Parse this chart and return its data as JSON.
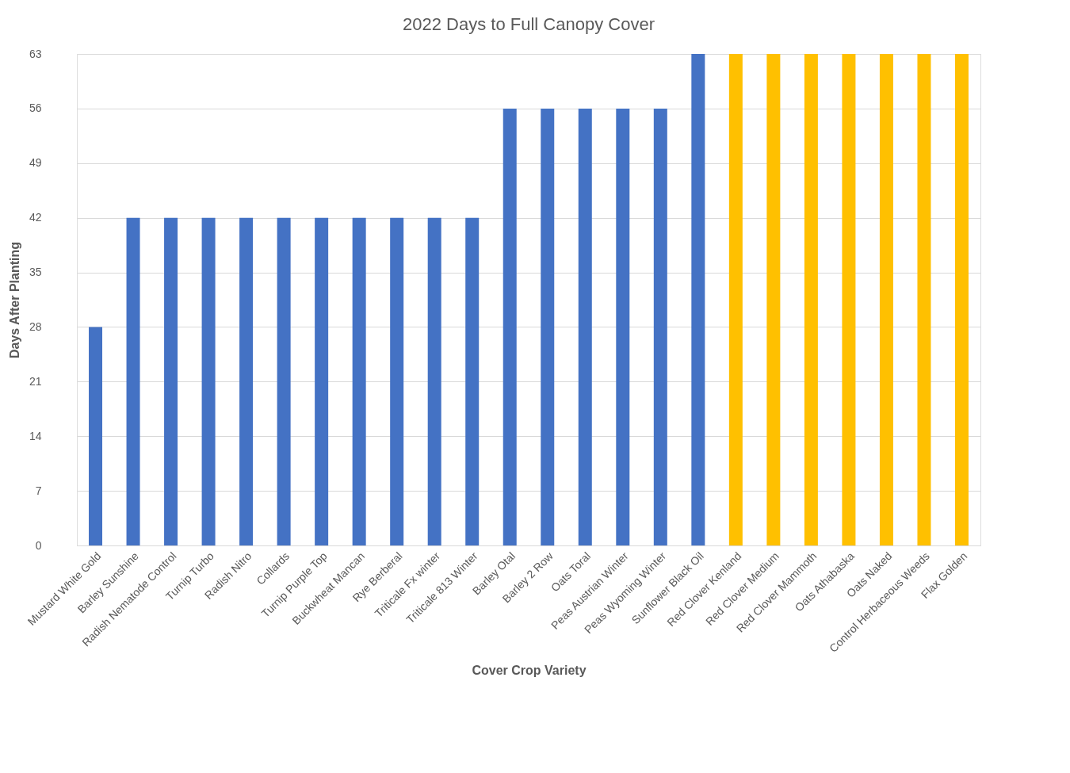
{
  "chart_data": {
    "type": "bar",
    "title": "2022 Days to Full Canopy Cover",
    "xlabel": "Cover Crop Variety",
    "ylabel": "Days After Planting",
    "categories": [
      "Mustard White Gold",
      "Barley Sunshine",
      "Radish Nematode Control",
      "Turnip Turbo",
      "Radish Nitro",
      "Collards",
      "Turnip Purple Top",
      "Buckwheat Mancan",
      "Rye Berberal",
      "Triticale Fx winter",
      "Triticale 813 Winter",
      "Barley Otal",
      "Barley 2 Row",
      "Oats Toral",
      "Peas Austrian Winter",
      "Peas Wyoming Winter",
      "Sunflower Black Oil",
      "Red Clover Kenland",
      "Red Clover Medium",
      "Red Clover Mammoth",
      "Oats Athabaska",
      "Oats Naked",
      "Control Herbaceous Weeds",
      "Flax Golden"
    ],
    "values": [
      28,
      42,
      42,
      42,
      42,
      42,
      42,
      42,
      42,
      42,
      42,
      56,
      56,
      56,
      56,
      56,
      63,
      63,
      63,
      63,
      63,
      63,
      63,
      63
    ],
    "colors": [
      "#4472c4",
      "#4472c4",
      "#4472c4",
      "#4472c4",
      "#4472c4",
      "#4472c4",
      "#4472c4",
      "#4472c4",
      "#4472c4",
      "#4472c4",
      "#4472c4",
      "#4472c4",
      "#4472c4",
      "#4472c4",
      "#4472c4",
      "#4472c4",
      "#4472c4",
      "#ffc000",
      "#ffc000",
      "#ffc000",
      "#ffc000",
      "#ffc000",
      "#ffc000",
      "#ffc000"
    ],
    "ylim": [
      0,
      63
    ],
    "yticks": [
      0,
      7,
      14,
      21,
      28,
      35,
      42,
      49,
      56,
      63
    ],
    "grid": "y"
  }
}
